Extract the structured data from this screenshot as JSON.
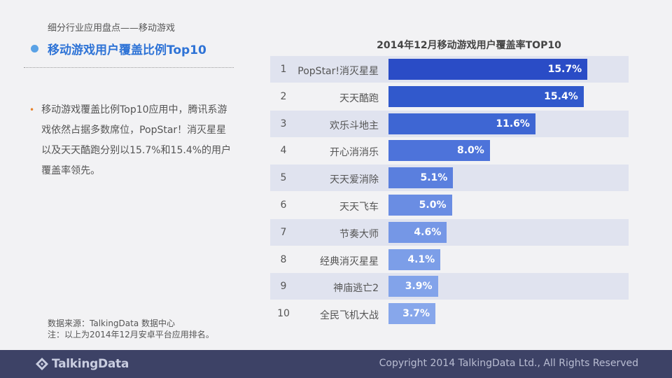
{
  "header": {
    "breadcrumb": "细分行业应用盘点——移动游戏",
    "title": "移动游戏用户覆盖比例Top10"
  },
  "summary": {
    "text": "移动游戏覆盖比例Top10应用中，腾讯系游戏依然占据多数席位，PopStar！消灭星星以及天天酷跑分别以15.7%和15.4%的用户覆盖率领先。"
  },
  "source": {
    "line1": "数据来源：TalkingData 数据中心",
    "line2": "注：以上为2014年12月安卓平台应用排名。"
  },
  "chart_data": {
    "type": "bar",
    "orientation": "horizontal",
    "title": "2014年12月移动游戏用户覆盖率TOP10",
    "ranks": [
      "1",
      "2",
      "3",
      "4",
      "5",
      "6",
      "7",
      "8",
      "9",
      "10"
    ],
    "categories": [
      "PopStar!消灭星星",
      "天天酷跑",
      "欢乐斗地主",
      "开心消消乐",
      "天天爱消除",
      "天天飞车",
      "节奏大师",
      "经典消灭星星",
      "神庙逃亡2",
      "全民飞机大战"
    ],
    "values": [
      15.7,
      15.4,
      11.6,
      8.0,
      5.1,
      5.0,
      4.6,
      4.1,
      3.9,
      3.7
    ],
    "value_labels": [
      "15.7%",
      "15.4%",
      "11.6%",
      "8.0%",
      "5.1%",
      "5.0%",
      "4.6%",
      "4.1%",
      "3.9%",
      "3.7%"
    ],
    "unit": "%",
    "xlim": [
      0,
      20
    ],
    "bar_colors": [
      "#2a4cc6",
      "#3159cc",
      "#3e66d3",
      "#4d73da",
      "#5a7fde",
      "#6a8de3",
      "#7597e6",
      "#7c9ee8",
      "#82a3ea",
      "#87a7eb"
    ],
    "row_colors": [
      "#e0e3ef",
      "#f2f2f4"
    ]
  },
  "footer": {
    "logo_text": "TalkingData",
    "logo_icon": "talkingdata-logo-icon",
    "copyright": "Copyright 2014 TalkingData Ltd., All Rights Reserved",
    "background": "#3d4266"
  }
}
